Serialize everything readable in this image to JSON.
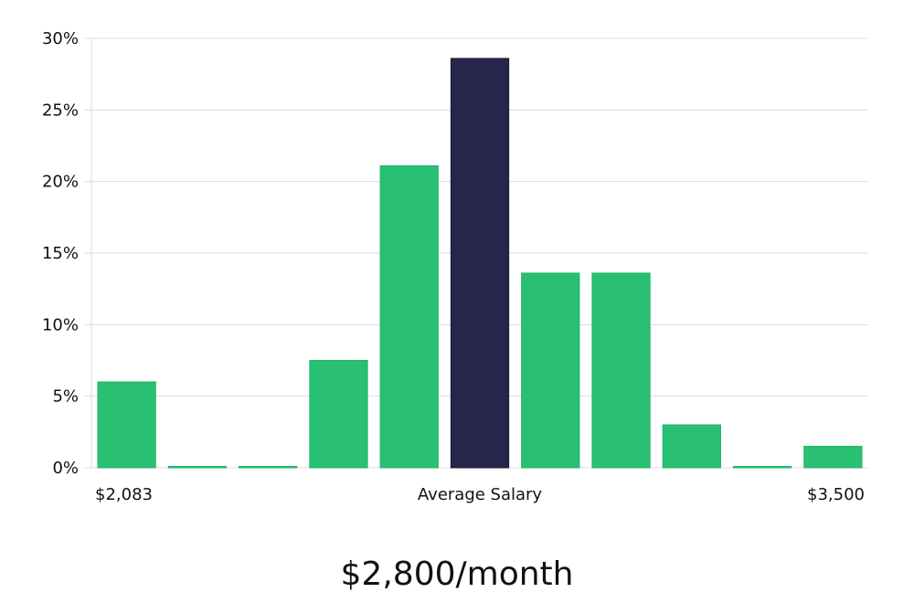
{
  "chart_data": {
    "type": "bar",
    "ylim": [
      0,
      30
    ],
    "yticks": [
      "0%",
      "5%",
      "10%",
      "15%",
      "20%",
      "25%",
      "30%"
    ],
    "ytick_values": [
      0,
      5,
      10,
      15,
      20,
      25,
      30
    ],
    "values": [
      6.0,
      0,
      0,
      7.5,
      21.1,
      28.6,
      13.6,
      13.6,
      3.0,
      0,
      1.5
    ],
    "highlight_index": 5,
    "x_min_label": "$2,083",
    "x_center_label": "Average Salary",
    "x_max_label": "$3,500",
    "grid": true,
    "colors": {
      "bar": "#29c073",
      "highlight": "#28254a",
      "grid": "#dcdcdc"
    }
  },
  "summary": {
    "salary": "$2,800/month"
  }
}
